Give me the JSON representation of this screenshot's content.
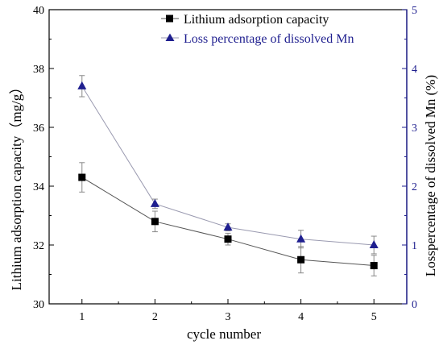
{
  "chart_data": {
    "type": "line",
    "xlabel": "cycle number",
    "x": [
      1,
      2,
      3,
      4,
      5
    ],
    "xlim": [
      0.55,
      5.45
    ],
    "xticks": [
      1,
      2,
      3,
      4,
      5
    ],
    "grid": false,
    "legend_position": "top-right",
    "axes": {
      "left": {
        "label": "Lithium adsorption capacity（mg/g）",
        "ylim": [
          30,
          40
        ],
        "ticks": [
          30,
          32,
          34,
          36,
          38,
          40
        ],
        "color": "#000000"
      },
      "right": {
        "label": "Losspercentage of dissolved Mn (%)",
        "ylim": [
          0,
          5
        ],
        "ticks": [
          0,
          1,
          2,
          3,
          4,
          5
        ],
        "color": "#1f1f8f"
      }
    },
    "series": [
      {
        "name": "Lithium adsorption capacity",
        "axis": "left",
        "marker": "square",
        "marker_color": "#000000",
        "line_color": "#555555",
        "values": [
          34.3,
          32.8,
          32.2,
          31.5,
          31.3
        ],
        "errors": [
          0.5,
          0.35,
          0.2,
          0.45,
          0.35
        ]
      },
      {
        "name": "Loss percentage of dissolved Mn",
        "axis": "right",
        "marker": "triangle",
        "marker_color": "#1f1f8f",
        "line_color": "#9a9ab0",
        "values": [
          3.7,
          1.7,
          1.3,
          1.1,
          1.0
        ],
        "errors": [
          0.18,
          0.08,
          0.06,
          0.15,
          0.15
        ]
      }
    ]
  }
}
